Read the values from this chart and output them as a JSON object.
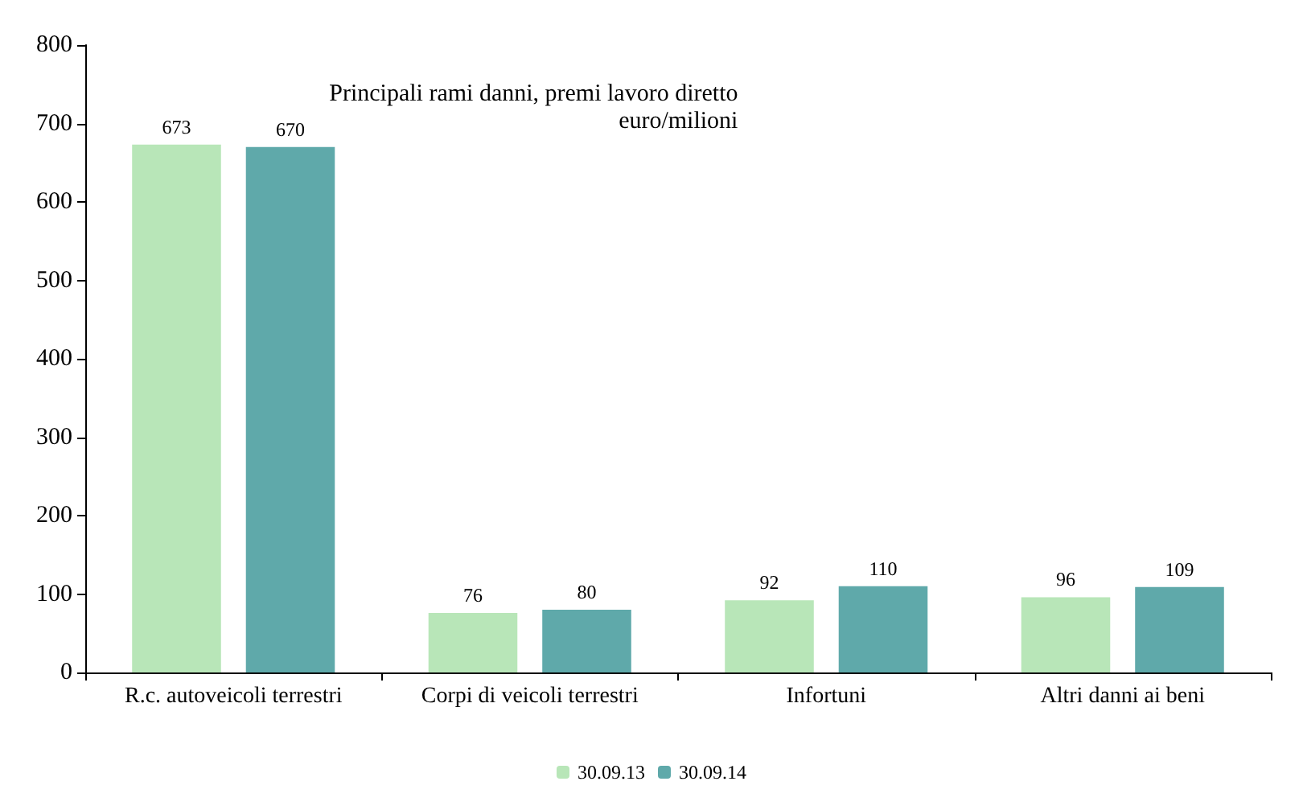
{
  "chart_data": {
    "type": "bar",
    "title": "Principali rami danni, premi lavoro diretto",
    "subtitle": "euro/milioni",
    "categories": [
      "R.c. autoveicoli terrestri",
      "Corpi di veicoli terrestri",
      "Infortuni",
      "Altri danni ai beni"
    ],
    "series": [
      {
        "name": "30.09.13",
        "color": "#b8e6b8",
        "values": [
          673,
          76,
          92,
          96
        ]
      },
      {
        "name": "30.09.14",
        "color": "#5fa9aa",
        "values": [
          670,
          80,
          110,
          109
        ]
      }
    ],
    "ylim": [
      0,
      800
    ],
    "yticks": [
      0,
      100,
      200,
      300,
      400,
      500,
      600,
      700,
      800
    ],
    "grid": false,
    "legend": "bottom",
    "data_labels": true
  }
}
